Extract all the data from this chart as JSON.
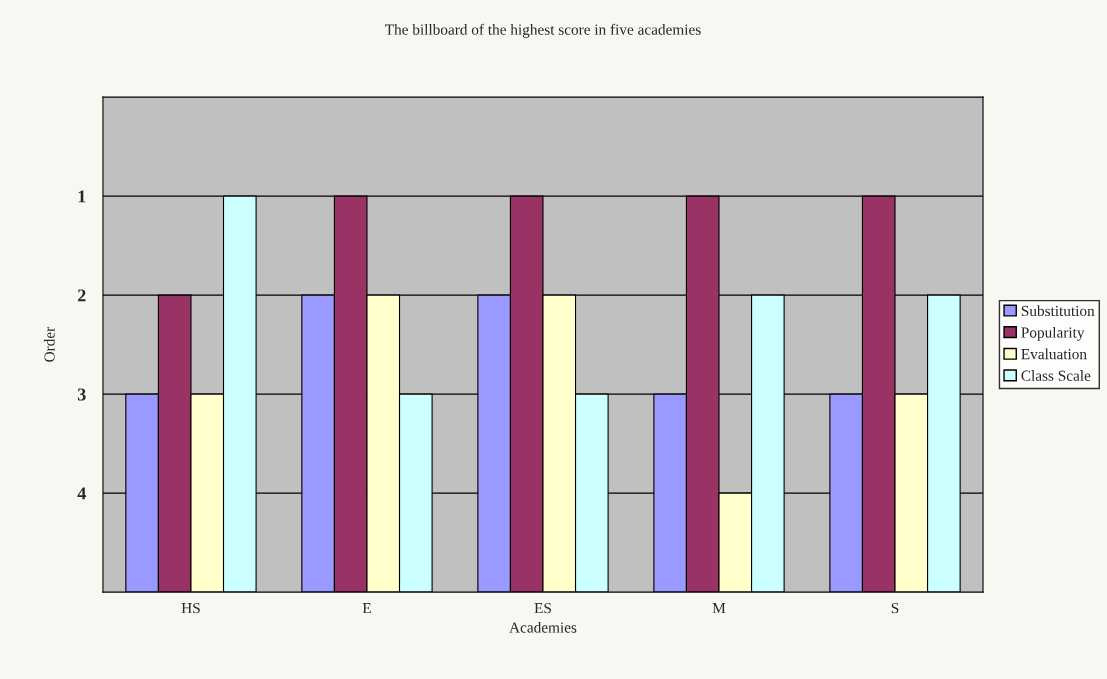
{
  "chart_data": {
    "type": "bar",
    "title": "The billboard of the highest score in five academies",
    "xlabel": "Academies",
    "ylabel": "Order",
    "categories": [
      "HS",
      "E",
      "ES",
      "M",
      "S"
    ],
    "series": [
      {
        "name": "Substitution",
        "color": "#9999ff",
        "base": [
          5,
          5,
          5,
          5,
          5
        ],
        "values": [
          -2,
          -3,
          -3,
          -2,
          -2
        ]
      },
      {
        "name": "Popularity",
        "color": "#993366",
        "base": [
          5,
          5,
          5,
          5,
          5
        ],
        "values": [
          -3,
          -4,
          -4,
          -4,
          -4
        ]
      },
      {
        "name": "Evaluation",
        "color": "#ffffcc",
        "base": [
          5,
          5,
          5,
          5,
          5
        ],
        "values": [
          -2,
          -3,
          -3,
          -1,
          -2
        ]
      },
      {
        "name": "Class Scale",
        "color": "#ccffff",
        "base": [
          5,
          5,
          5,
          5,
          5
        ],
        "values": [
          -4,
          -2,
          -2,
          -3,
          -3
        ]
      }
    ],
    "ylim": [
      5,
      0
    ],
    "yticks": [
      1,
      2,
      3,
      4
    ],
    "grid": "y",
    "legend": "right"
  }
}
